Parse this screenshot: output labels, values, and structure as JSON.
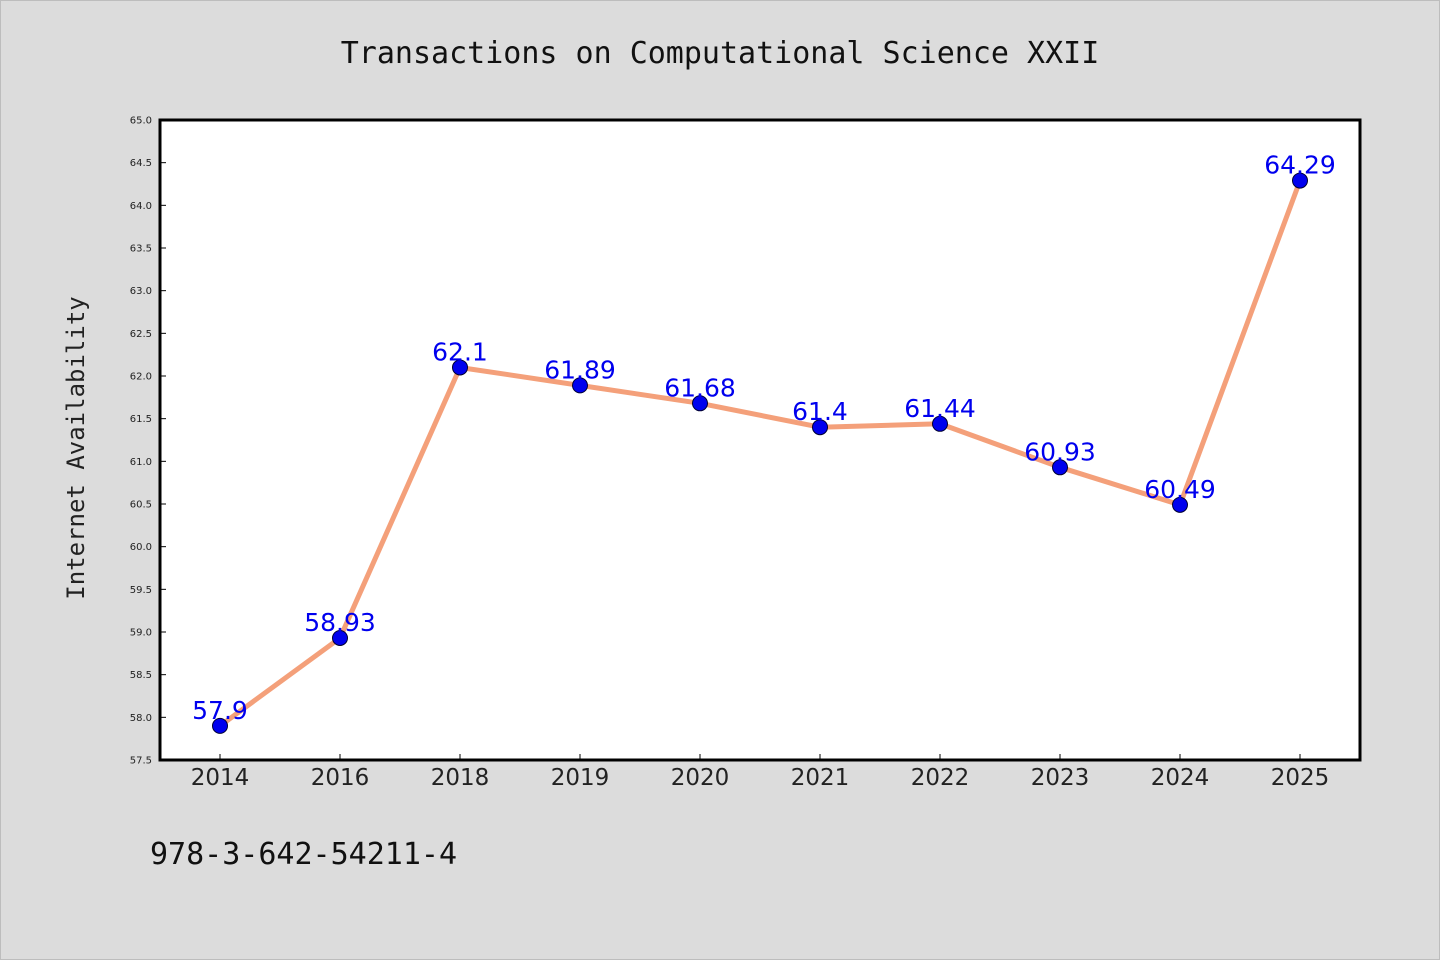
{
  "chart_data": {
    "type": "line",
    "title": "Transactions on Computational Science XXII",
    "xlabel": "",
    "ylabel": "Internet Availability",
    "categories": [
      "2014",
      "2016",
      "2018",
      "2019",
      "2020",
      "2021",
      "2022",
      "2023",
      "2024",
      "2025"
    ],
    "series": [
      {
        "values": [
          57.9,
          58.93,
          62.1,
          61.89,
          61.68,
          61.4,
          61.44,
          60.93,
          60.49,
          64.29
        ],
        "labels": [
          "57.9",
          "58.93",
          "62.1",
          "61.89",
          "61.68",
          "61.4",
          "61.44",
          "60.93",
          "60.49",
          "64.29"
        ]
      }
    ],
    "ylim": [
      57.5,
      65.0
    ],
    "yticks": [
      "57.5",
      "58.0",
      "58.5",
      "59.0",
      "59.5",
      "60.0",
      "60.5",
      "61.0",
      "61.5",
      "62.0",
      "62.5",
      "63.0",
      "63.5",
      "64.0",
      "64.5",
      "65.0"
    ],
    "grid": false,
    "legend": "none",
    "colors": {
      "line": "#f4a07a",
      "marker": "#0000ee",
      "label": "#0000ee",
      "plot_bg": "#ffffff",
      "page_bg": "#dcdcdc"
    }
  },
  "footnote": "978-3-642-54211-4"
}
